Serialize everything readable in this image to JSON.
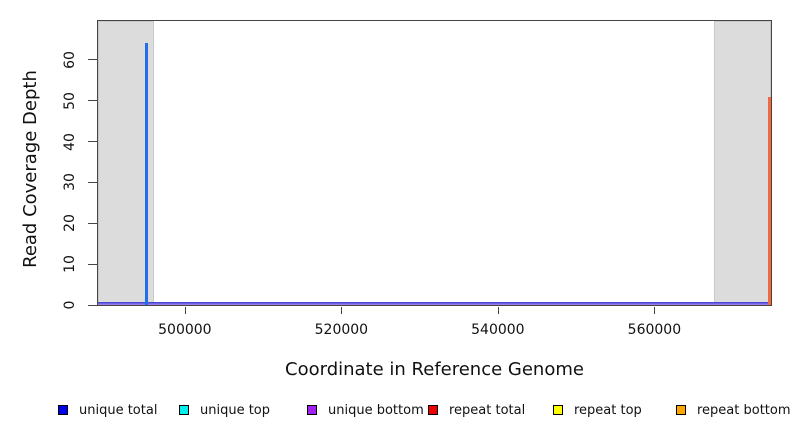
{
  "chart_data": {
    "type": "line",
    "title": "",
    "xlabel": "Coordinate in Reference Genome",
    "ylabel": "Read Coverage Depth",
    "xlim": [
      488900,
      574900
    ],
    "ylim": [
      0,
      69.5
    ],
    "grid": false,
    "legend_position": "bottom",
    "xticks": {
      "values": [
        500000,
        520000,
        540000,
        560000
      ],
      "labels": [
        "500000",
        "520000",
        "540000",
        "560000"
      ]
    },
    "yticks": {
      "values": [
        0,
        10,
        20,
        30,
        40,
        50,
        60
      ],
      "labels": [
        "0",
        "10",
        "20",
        "30",
        "40",
        "50",
        "60"
      ]
    },
    "shaded_regions": {
      "color": "#dcdcdc",
      "border_color": "#c9c9c9",
      "ranges": [
        {
          "start": 488900,
          "end": 496100
        },
        {
          "start": 567600,
          "end": 574900
        }
      ]
    },
    "baseline": {
      "depth": 0,
      "rendered_colors": [
        "#4747d8",
        "#9d7ce9"
      ]
    },
    "series": [
      {
        "name": "unique total",
        "color": "#0000ee",
        "spikes": [
          {
            "x": 495100,
            "depth": 64,
            "rendered_color": "#2170e8"
          }
        ]
      },
      {
        "name": "unique top",
        "color": "#00eeee",
        "spikes": []
      },
      {
        "name": "unique bottom",
        "color": "#a020f0",
        "spikes": []
      },
      {
        "name": "repeat total",
        "color": "#ee0000",
        "spikes": []
      },
      {
        "name": "repeat top",
        "color": "#ffff00",
        "spikes": []
      },
      {
        "name": "repeat bottom",
        "color": "#ffa500",
        "spikes": [
          {
            "x": 574700,
            "depth": 51,
            "rendered_color": "#f2693f"
          }
        ]
      }
    ],
    "axis_color": "#454545",
    "text_color": "#111111"
  }
}
